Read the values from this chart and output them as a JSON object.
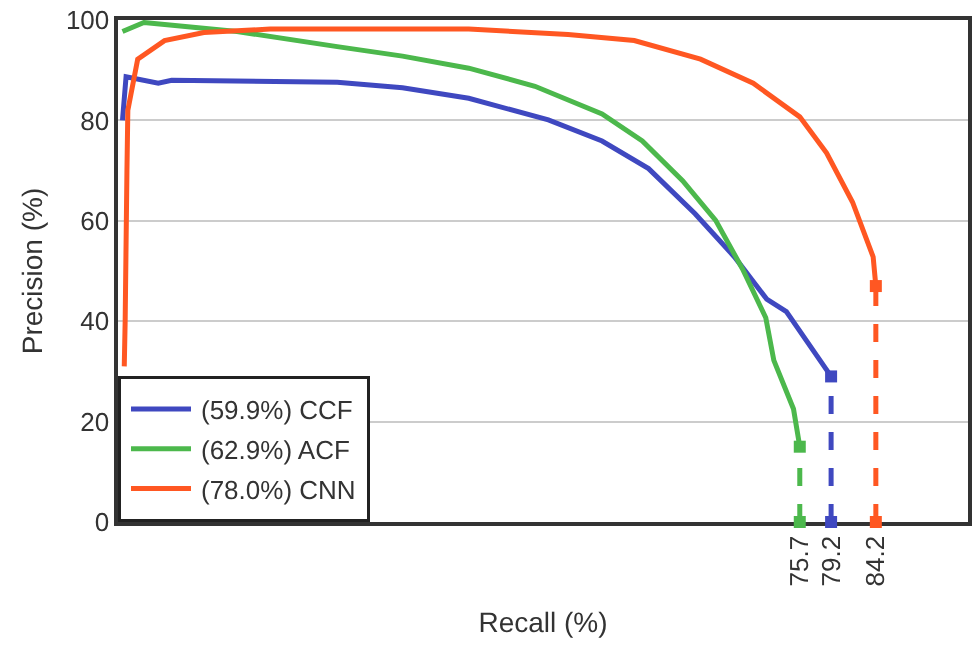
{
  "chart_data": {
    "type": "line",
    "xlabel": "Recall (%)",
    "ylabel": "Precision (%)",
    "xlim": [
      -0.5,
      94.5
    ],
    "ylim": [
      0,
      100
    ],
    "xticks": [
      75.7,
      79.2,
      84.2
    ],
    "yticks": [
      0,
      20,
      40,
      60,
      80,
      100
    ],
    "grid": "y",
    "legend": "bottom left",
    "marker": "none",
    "line_style": "solid",
    "series": [
      {
        "name": "(59.9%) CCF",
        "color": "#3f48c0",
        "x": [
          0,
          0.4,
          4,
          5.5,
          24,
          31.3,
          38.7,
          47.6,
          53.6,
          58.8,
          64,
          68.4,
          72,
          74.2,
          79.2
        ],
        "values": [
          80,
          88.7,
          87.4,
          88,
          87.6,
          86.5,
          84.4,
          80.1,
          75.9,
          70.4,
          61.4,
          52.8,
          44.4,
          41.9,
          29
        ]
      },
      {
        "name": "(62.9%) ACF",
        "color": "#4cb84c",
        "x": [
          0,
          2.4,
          12.8,
          24,
          31.3,
          38.7,
          46.1,
          53.6,
          58.1,
          62.6,
          66.3,
          69.3,
          71.9,
          72.8,
          75,
          75.7
        ],
        "values": [
          97.7,
          99.5,
          97.7,
          94.7,
          92.8,
          90.4,
          86.8,
          81.3,
          75.9,
          68,
          60.1,
          50.4,
          40.7,
          32.2,
          22.5,
          15
        ]
      },
      {
        "name": "(78.0%) CNN",
        "color": "#ff5722",
        "x": [
          0.2,
          0.3,
          0.5,
          0.6,
          1.7,
          4.7,
          9.1,
          16.5,
          38.7,
          49.8,
          57.2,
          64.6,
          70.5,
          75.7,
          78.7,
          81.6,
          83.9,
          84.2
        ],
        "values": [
          31,
          40,
          70,
          82,
          92.2,
          95.9,
          97.5,
          98.2,
          98.2,
          97.1,
          95.9,
          92.2,
          87.4,
          80.7,
          73.5,
          63.7,
          52.8,
          47
        ]
      },
      {
        "color": "#3f48c0",
        "x": [
          79.2,
          79.2
        ],
        "values": [
          0,
          29
        ],
        "line_style": "dashed",
        "marker": "square"
      },
      {
        "color": "#4cb84c",
        "x": [
          75.7,
          75.7
        ],
        "values": [
          0,
          15
        ],
        "line_style": "dashed",
        "marker": "square"
      },
      {
        "color": "#ff5722",
        "x": [
          84.2,
          84.2
        ],
        "values": [
          0,
          47
        ],
        "line_style": "dashed",
        "marker": "square"
      }
    ]
  }
}
